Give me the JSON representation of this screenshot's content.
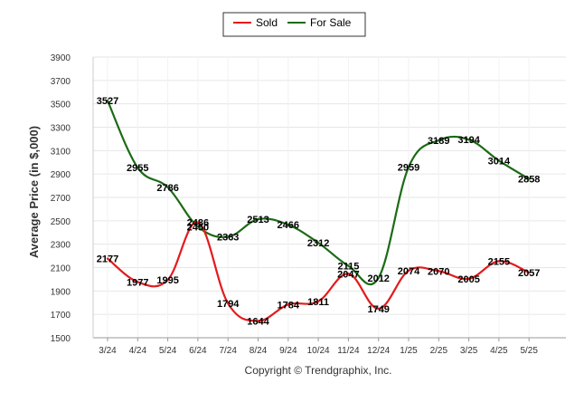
{
  "chart_data": {
    "type": "line",
    "categories": [
      "3/24",
      "4/24",
      "5/24",
      "6/24",
      "7/24",
      "8/24",
      "9/24",
      "10/24",
      "11/24",
      "12/24",
      "1/25",
      "2/25",
      "3/25",
      "4/25",
      "5/25"
    ],
    "series": [
      {
        "name": "Sold",
        "color": "#e31a1c",
        "values": [
          2177,
          1977,
          1995,
          2486,
          1794,
          1644,
          1784,
          1811,
          2047,
          1749,
          2074,
          2070,
          2005,
          2155,
          2057
        ]
      },
      {
        "name": "For Sale",
        "color": "#1b6b14",
        "values": [
          3527,
          2955,
          2786,
          2450,
          2363,
          2513,
          2466,
          2312,
          2115,
          2012,
          2959,
          3189,
          3194,
          3014,
          2858
        ]
      }
    ],
    "ylabel": "Average Price (in $,000)",
    "xlabel": "",
    "yticks": [
      1500,
      1700,
      1900,
      2100,
      2300,
      2500,
      2700,
      2900,
      3100,
      3300,
      3500,
      3700,
      3900
    ],
    "ylim": [
      1500,
      3900
    ],
    "grid": true,
    "legend_position": "top-center"
  },
  "footer": {
    "copyright": "Copyright © Trendgraphix, Inc."
  }
}
